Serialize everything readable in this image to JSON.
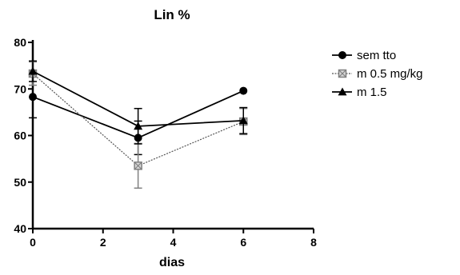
{
  "chart_data": {
    "type": "line",
    "title": "Lin %",
    "xlabel": "dias",
    "ylabel": "",
    "xlim": [
      0,
      8
    ],
    "ylim": [
      40,
      80
    ],
    "x_ticks": [
      "0",
      "2",
      "4",
      "6",
      "8"
    ],
    "y_ticks": [
      "40",
      "50",
      "60",
      "70",
      "80"
    ],
    "x_tick_values": [
      0,
      2,
      4,
      6,
      8
    ],
    "y_tick_values": [
      40,
      50,
      60,
      70,
      80
    ],
    "grid": false,
    "legend_position": "right",
    "series": [
      {
        "name": "sem tto",
        "marker": "circle",
        "color": "#000000",
        "line_color": "#000000",
        "x": [
          0,
          3,
          6
        ],
        "y": [
          68.3,
          59.5,
          69.6
        ],
        "err": [
          4.5,
          3.6,
          0
        ]
      },
      {
        "name": "m 0.5 mg/kg",
        "marker": "square-x",
        "color": "#808080",
        "line_color": "#555555",
        "x": [
          0,
          3,
          6
        ],
        "y": [
          73.3,
          53.5,
          63.0
        ],
        "err": [
          2.5,
          4.8,
          2.8
        ]
      },
      {
        "name": "m 1.5",
        "marker": "triangle",
        "color": "#000000",
        "line_color": "#000000",
        "x": [
          0,
          3,
          6
        ],
        "y": [
          73.8,
          62.0,
          63.2
        ],
        "err": [
          2.2,
          3.8,
          2.8
        ]
      }
    ]
  }
}
